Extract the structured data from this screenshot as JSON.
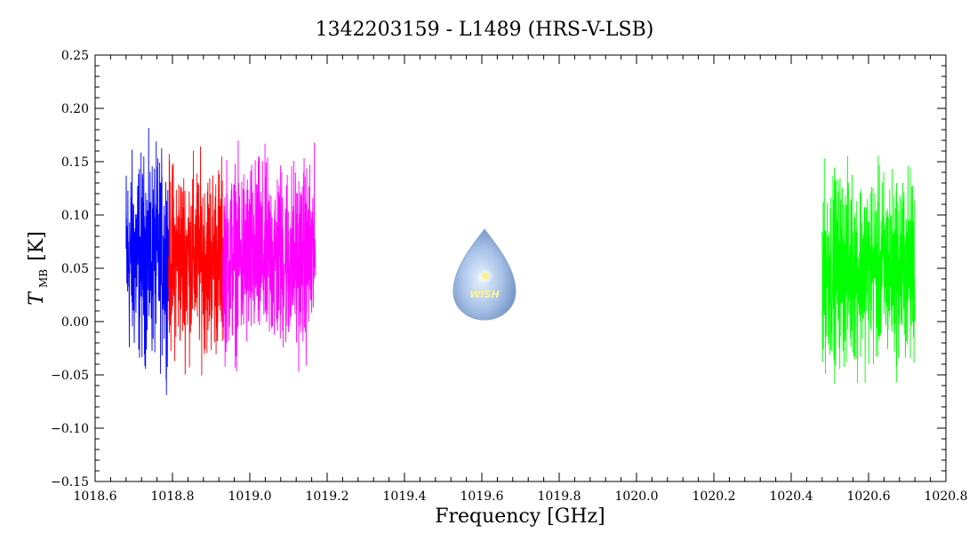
{
  "chart_data": {
    "type": "line",
    "title": "1342203159 - L1489 (HRS-V-LSB)",
    "xlabel": "Frequency [GHz]",
    "ylabel_main": "T",
    "ylabel_sub": "MB",
    "ylabel_unit": "[K]",
    "xlim": [
      1018.6,
      1020.8
    ],
    "ylim": [
      -0.15,
      0.25
    ],
    "x_ticks": [
      1018.6,
      1018.8,
      1019.0,
      1019.2,
      1019.4,
      1019.6,
      1019.8,
      1020.0,
      1020.2,
      1020.4,
      1020.6,
      1020.8
    ],
    "x_tick_labels": [
      "1018.6",
      "1018.8",
      "1019.0",
      "1019.2",
      "1019.4",
      "1019.6",
      "1019.8",
      "1020.0",
      "1020.2",
      "1020.4",
      "1020.6",
      "1020.8"
    ],
    "y_ticks": [
      -0.15,
      -0.1,
      -0.05,
      0.0,
      0.05,
      0.1,
      0.15,
      0.2,
      0.25
    ],
    "y_tick_labels": [
      "-0.15",
      "-0.10",
      "-0.05",
      "0.00",
      "0.05",
      "0.10",
      "0.15",
      "0.20",
      "0.25"
    ],
    "grid": false,
    "series": [
      {
        "color": "#0000ff",
        "x_range": [
          1018.68,
          1018.79
        ],
        "mean": 0.06,
        "amplitude": 0.16
      },
      {
        "color": "#ff0000",
        "x_range": [
          1018.79,
          1018.93
        ],
        "mean": 0.06,
        "amplitude": 0.15
      },
      {
        "color": "#ff00ff",
        "x_range": [
          1018.93,
          1019.17
        ],
        "mean": 0.06,
        "amplitude": 0.15
      },
      {
        "color": "#00ff00",
        "x_range": [
          1020.48,
          1020.72
        ],
        "mean": 0.05,
        "amplitude": 0.15
      }
    ],
    "logo": {
      "text": "WISH",
      "position": "center"
    }
  }
}
